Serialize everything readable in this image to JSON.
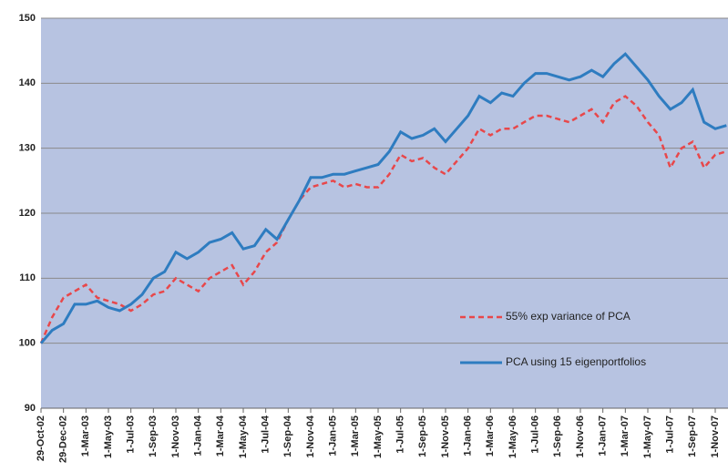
{
  "chart_data": {
    "type": "line",
    "categories": [
      "29-Oct-02",
      null,
      "29-Dec-02",
      null,
      "1-Mar-03",
      null,
      "1-May-03",
      null,
      "1-Jul-03",
      null,
      "1-Sep-03",
      null,
      "1-Nov-03",
      null,
      "1-Jan-04",
      null,
      "1-Mar-04",
      null,
      "1-May-04",
      null,
      "1-Jul-04",
      null,
      "1-Sep-04",
      null,
      "1-Nov-04",
      null,
      "1-Jan-05",
      null,
      "1-Mar-05",
      null,
      "1-May-05",
      null,
      "1-Jul-05",
      null,
      "1-Sep-05",
      null,
      "1-Nov-05",
      null,
      "1-Jan-06",
      null,
      "1-Mar-06",
      null,
      "1-May-06",
      null,
      "1-Jul-06",
      null,
      "1-Sep-06",
      null,
      "1-Nov-06",
      null,
      "1-Jan-07",
      null,
      "1-Mar-07",
      null,
      "1-May-07",
      null,
      "1-Jul-07",
      null,
      "1-Sep-07",
      null,
      "1-Nov-07",
      null
    ],
    "series": [
      {
        "name": "55% exp variance of PCA",
        "color": "#e8474a",
        "dashed": true,
        "values": [
          100,
          104,
          107,
          108,
          109,
          107,
          106.5,
          106,
          105,
          106,
          107.5,
          108,
          110,
          109,
          108,
          110,
          111,
          112,
          109,
          111,
          114,
          115.5,
          119,
          122,
          124,
          124.5,
          125,
          124,
          124.5,
          124,
          124,
          126,
          129,
          128,
          128.5,
          127,
          126,
          128,
          130,
          133,
          132,
          133,
          133,
          134,
          135,
          135,
          134.5,
          134,
          135,
          136,
          134,
          137,
          138,
          136.5,
          134,
          132,
          127,
          130,
          131,
          127,
          129,
          129.5
        ]
      },
      {
        "name": "PCA using 15 eigenportfolios",
        "color": "#2e7cc0",
        "dashed": false,
        "values": [
          100,
          102,
          103,
          106,
          106,
          106.5,
          105.5,
          105,
          106,
          107.5,
          110,
          111,
          114,
          113,
          114,
          115.5,
          116,
          117,
          114.5,
          115,
          117.5,
          116,
          119,
          122,
          125.5,
          125.5,
          126,
          126,
          126.5,
          127,
          127.5,
          129.5,
          132.5,
          131.5,
          132,
          133,
          131,
          133,
          135,
          138,
          137,
          138.5,
          138,
          140,
          141.5,
          141.5,
          141,
          140.5,
          141,
          142,
          141,
          143,
          144.5,
          142.5,
          140.5,
          138,
          136,
          137,
          139,
          134,
          133,
          133.5
        ]
      }
    ],
    "ylim": [
      90,
      150
    ],
    "yticks": [
      90,
      100,
      110,
      120,
      130,
      140,
      150
    ],
    "grid": true
  }
}
